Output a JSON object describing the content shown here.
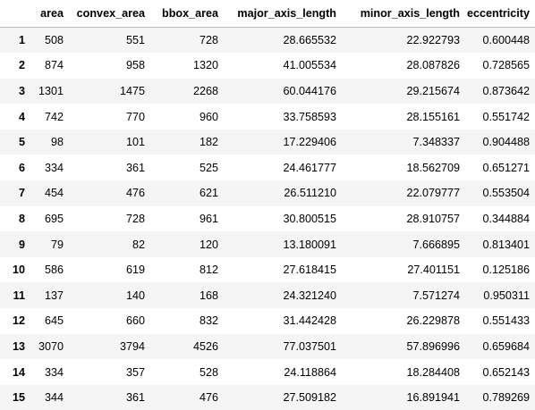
{
  "table": {
    "index_header": "",
    "columns": [
      "area",
      "convex_area",
      "bbox_area",
      "major_axis_length",
      "minor_axis_length",
      "eccentricity"
    ],
    "rows": [
      {
        "index": "1",
        "cells": [
          "508",
          "551",
          "728",
          "28.665532",
          "22.922793",
          "0.600448"
        ]
      },
      {
        "index": "2",
        "cells": [
          "874",
          "958",
          "1320",
          "41.005534",
          "28.087826",
          "0.728565"
        ]
      },
      {
        "index": "3",
        "cells": [
          "1301",
          "1475",
          "2268",
          "60.044176",
          "29.215674",
          "0.873642"
        ]
      },
      {
        "index": "4",
        "cells": [
          "742",
          "770",
          "960",
          "33.758593",
          "28.155161",
          "0.551742"
        ]
      },
      {
        "index": "5",
        "cells": [
          "98",
          "101",
          "182",
          "17.229406",
          "7.348337",
          "0.904488"
        ]
      },
      {
        "index": "6",
        "cells": [
          "334",
          "361",
          "525",
          "24.461777",
          "18.562709",
          "0.651271"
        ]
      },
      {
        "index": "7",
        "cells": [
          "454",
          "476",
          "621",
          "26.511210",
          "22.079777",
          "0.553504"
        ]
      },
      {
        "index": "8",
        "cells": [
          "695",
          "728",
          "961",
          "30.800515",
          "28.910757",
          "0.344884"
        ]
      },
      {
        "index": "9",
        "cells": [
          "79",
          "82",
          "120",
          "13.180091",
          "7.666895",
          "0.813401"
        ]
      },
      {
        "index": "10",
        "cells": [
          "586",
          "619",
          "812",
          "27.618415",
          "27.401151",
          "0.125186"
        ]
      },
      {
        "index": "11",
        "cells": [
          "137",
          "140",
          "168",
          "24.321240",
          "7.571274",
          "0.950311"
        ]
      },
      {
        "index": "12",
        "cells": [
          "645",
          "660",
          "832",
          "31.442428",
          "26.229878",
          "0.551433"
        ]
      },
      {
        "index": "13",
        "cells": [
          "3070",
          "3794",
          "4526",
          "77.037501",
          "57.896996",
          "0.659684"
        ]
      },
      {
        "index": "14",
        "cells": [
          "334",
          "357",
          "528",
          "24.118864",
          "18.284408",
          "0.652143"
        ]
      },
      {
        "index": "15",
        "cells": [
          "344",
          "361",
          "476",
          "27.509182",
          "16.891941",
          "0.789269"
        ]
      }
    ]
  },
  "colors": {
    "stripe_row": "#f5f5f5",
    "plain_row": "#ffffff",
    "header_border": "#bdbdbd",
    "text": "#000000"
  }
}
